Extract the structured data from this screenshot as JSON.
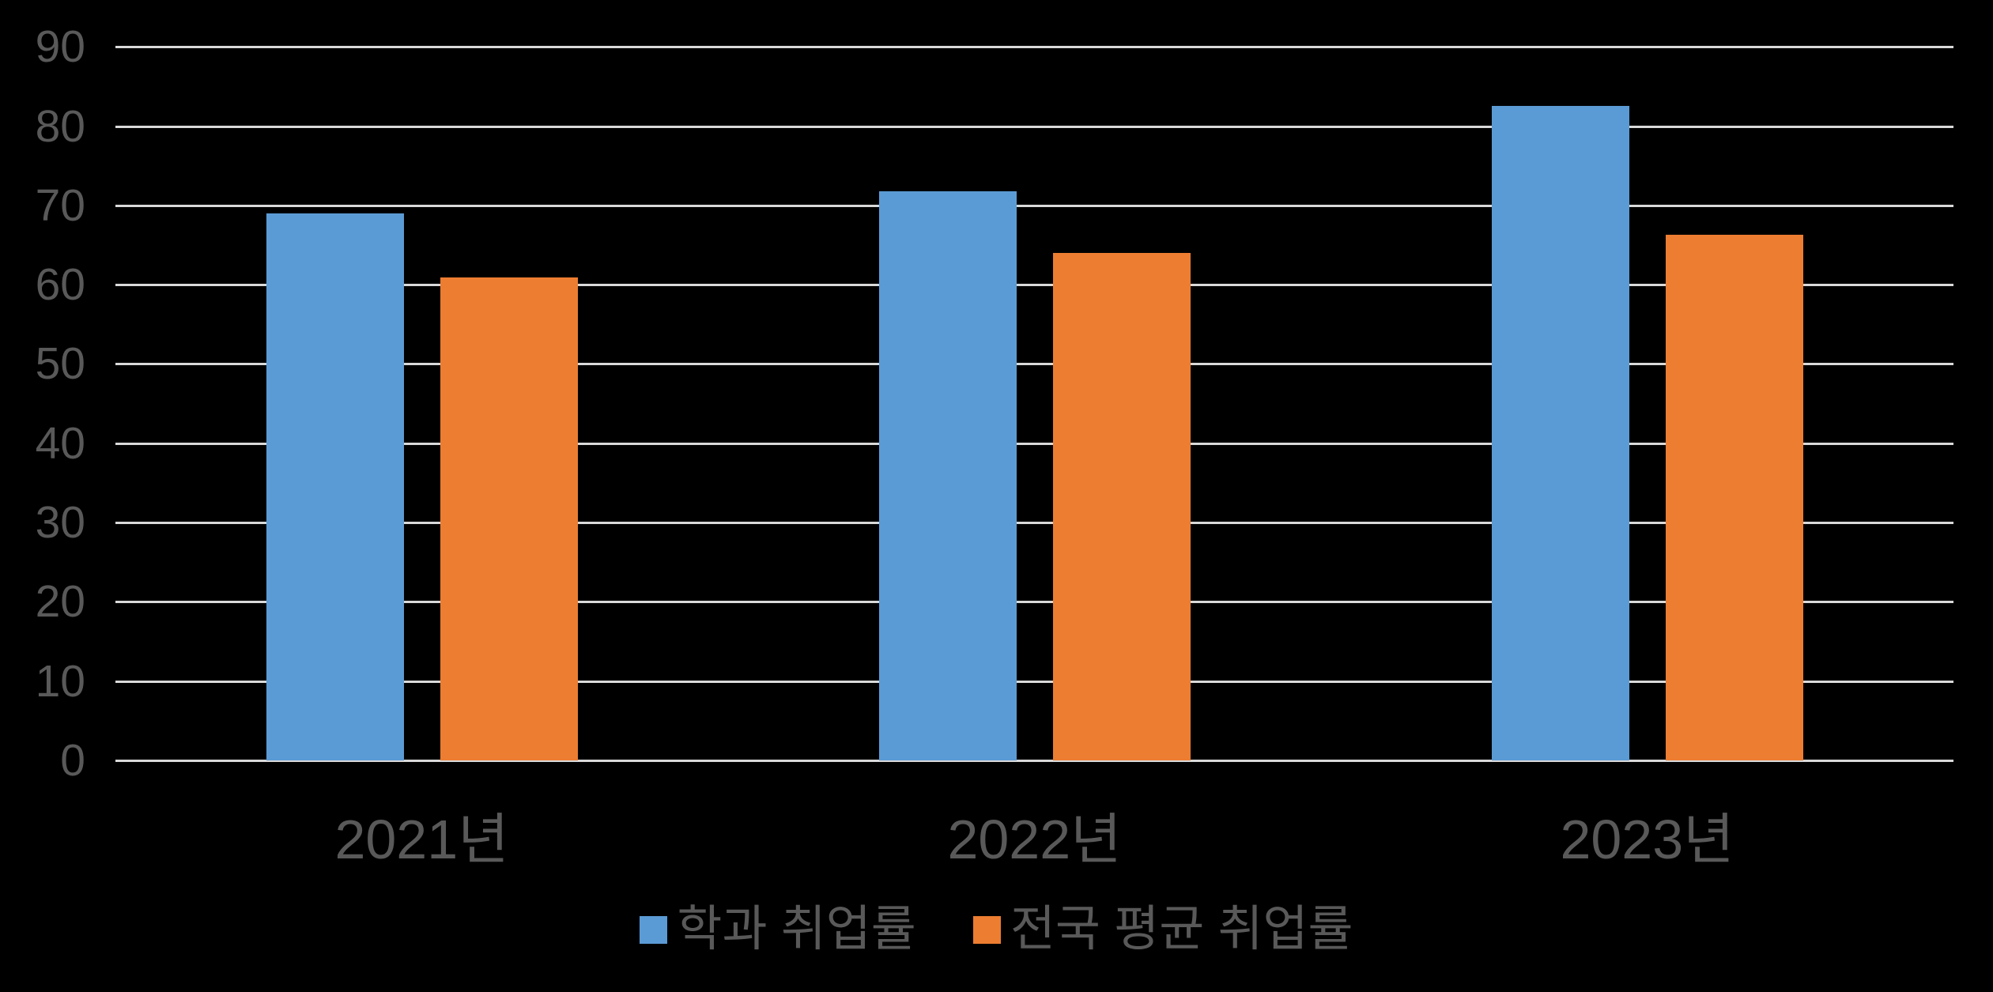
{
  "chart_data": {
    "type": "bar",
    "categories": [
      "2021년",
      "2022년",
      "2023년"
    ],
    "series": [
      {
        "name": "학과 취업률",
        "color": "#5B9BD5",
        "values": [
          69,
          71.8,
          82.6
        ]
      },
      {
        "name": "전국 평균 취업률",
        "color": "#ED7D31",
        "values": [
          61,
          64.1,
          66.3
        ]
      }
    ],
    "title": "",
    "xlabel": "",
    "ylabel": "",
    "ylim": [
      0,
      90
    ],
    "yticks": [
      0,
      10,
      20,
      30,
      40,
      50,
      60,
      70,
      80,
      90
    ],
    "grid": true,
    "legend_position": "bottom",
    "colors": {
      "background": "#000000",
      "gridline": "#D9D9D9",
      "text": "#595959"
    }
  }
}
